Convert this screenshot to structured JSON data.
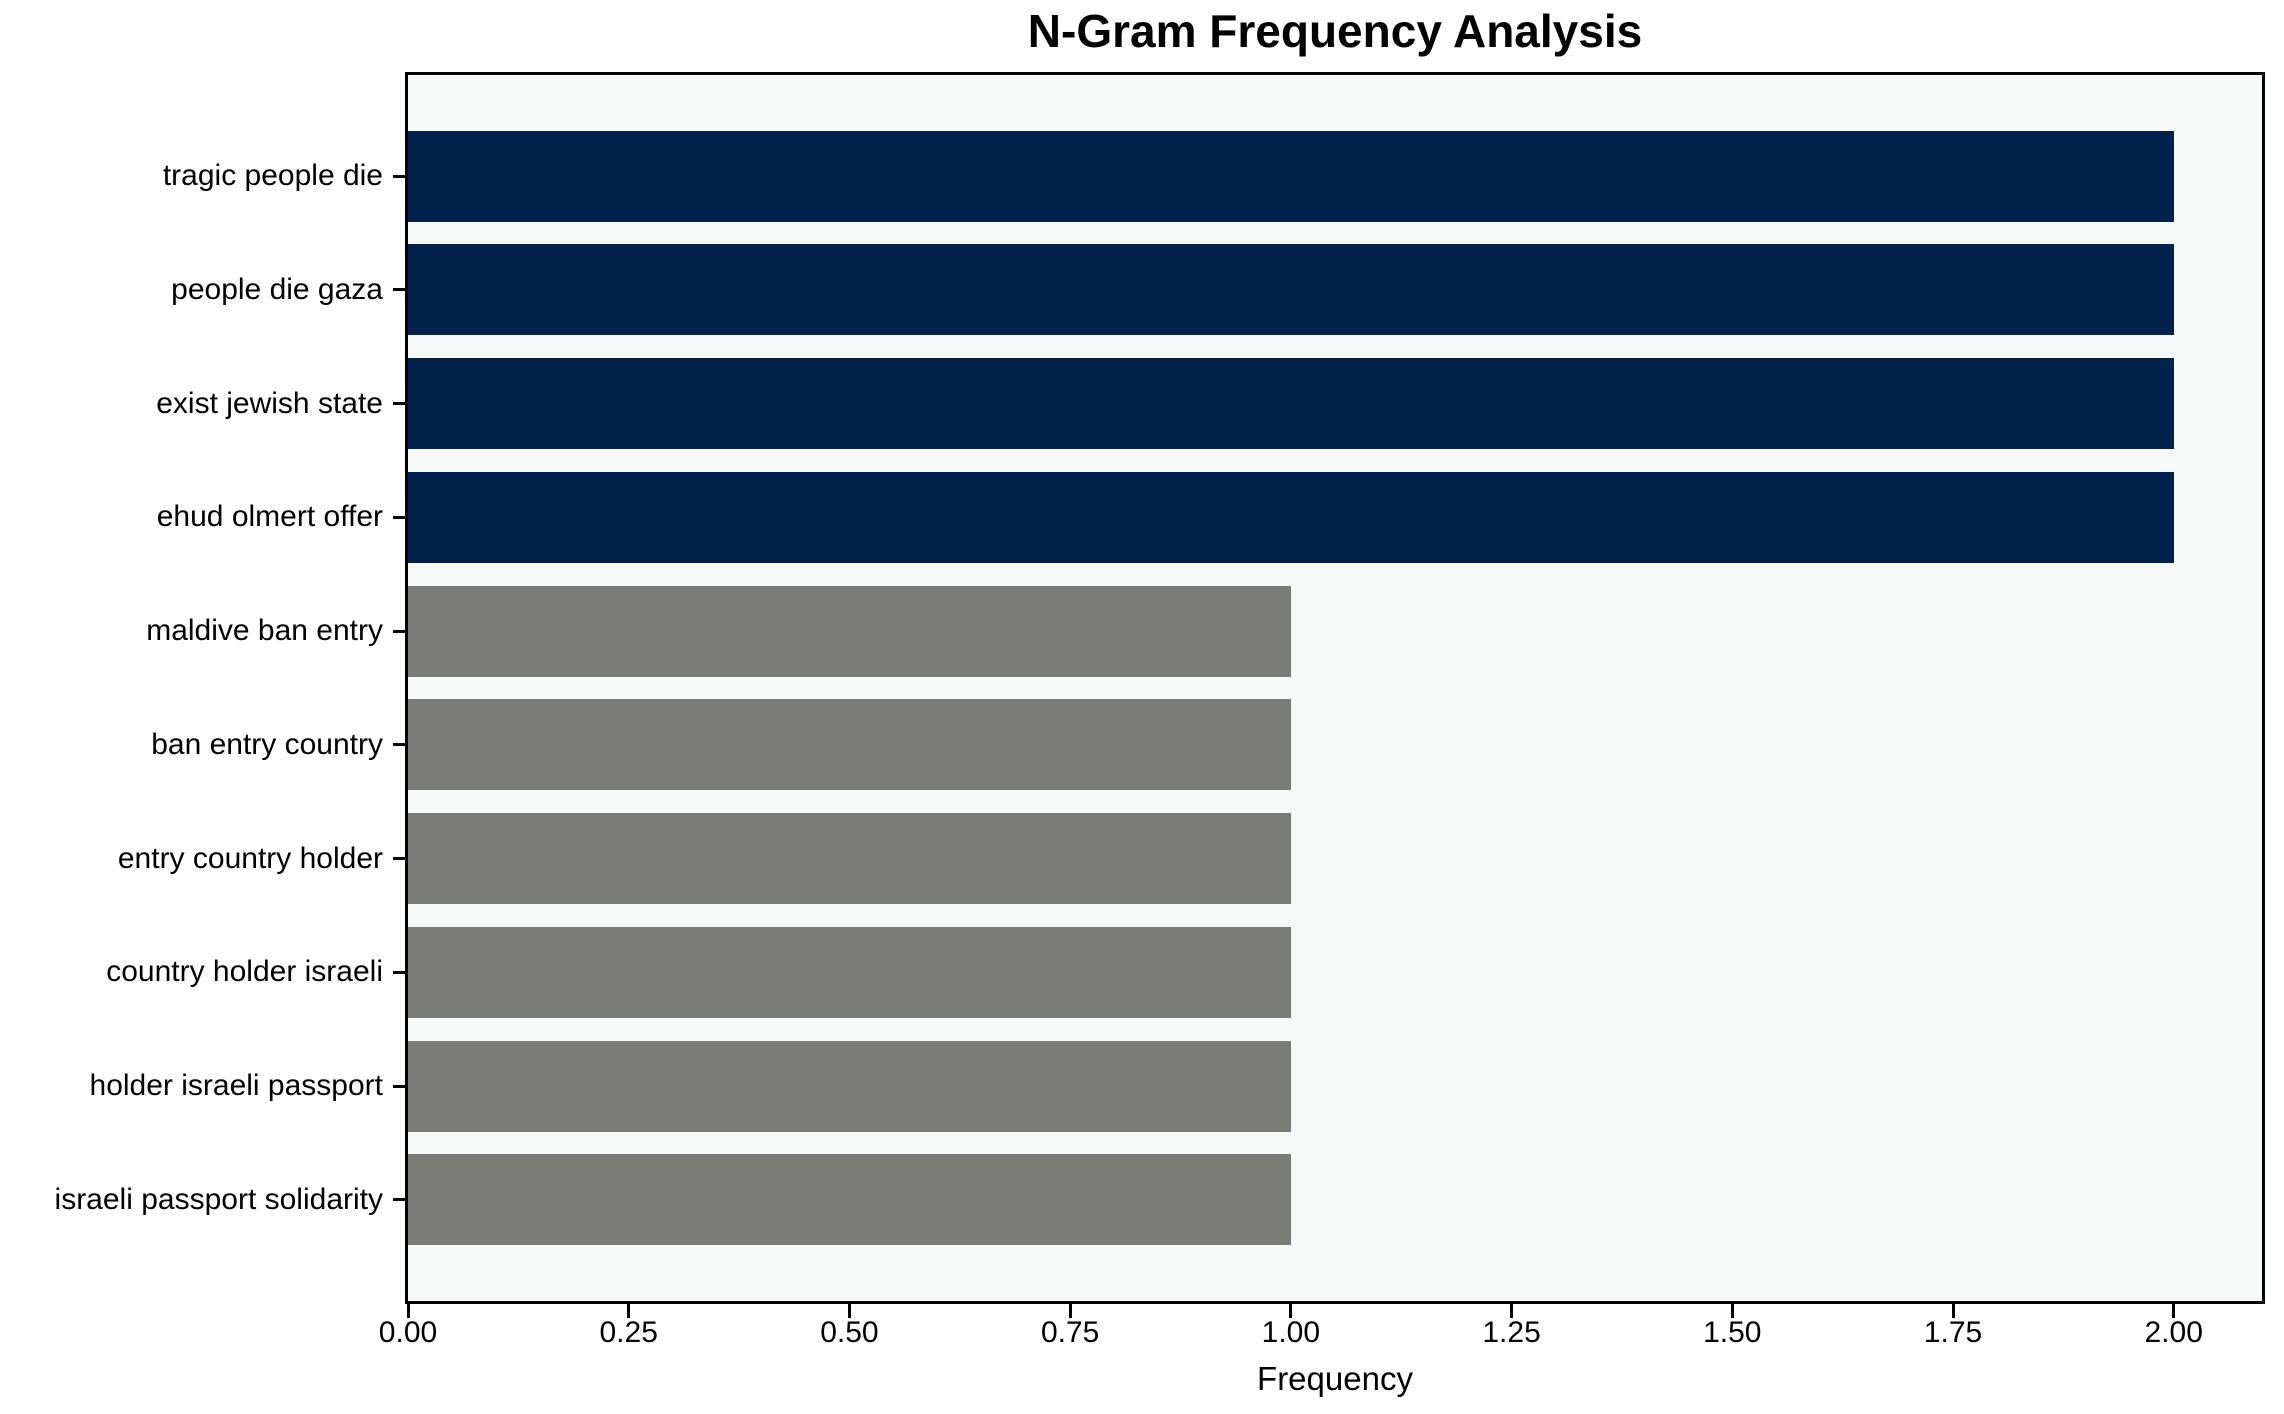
{
  "chart_data": {
    "type": "bar",
    "orientation": "horizontal",
    "title": "N-Gram Frequency Analysis",
    "xlabel": "Frequency",
    "ylabel": "",
    "categories": [
      "tragic people die",
      "people die gaza",
      "exist jewish state",
      "ehud olmert offer",
      "maldive ban entry",
      "ban entry country",
      "entry country holder",
      "country holder israeli",
      "holder israeli passport",
      "israeli passport solidarity"
    ],
    "values": [
      2,
      2,
      2,
      2,
      1,
      1,
      1,
      1,
      1,
      1
    ],
    "bar_colors": [
      "#02224d",
      "#02224d",
      "#02224d",
      "#02224d",
      "#7b7b77",
      "#7b7b77",
      "#7b7b77",
      "#7b7b77",
      "#7b7b77",
      "#7b7b77"
    ],
    "xlim": [
      0,
      2.1
    ],
    "x_tick_values": [
      0,
      0.25,
      0.5,
      0.75,
      1.0,
      1.25,
      1.5,
      1.75,
      2.0
    ],
    "x_tick_labels": [
      "0.00",
      "0.25",
      "0.50",
      "0.75",
      "1.00",
      "1.25",
      "1.50",
      "1.75",
      "2.00"
    ],
    "grid": "off",
    "legend": "none",
    "colors": {
      "highlight_bar": "#02224d",
      "default_bar": "#7b7b77",
      "plot_background": "#f7f8f8",
      "page_background": "#ffffff",
      "spine": "#000000",
      "text": "#000000"
    }
  }
}
